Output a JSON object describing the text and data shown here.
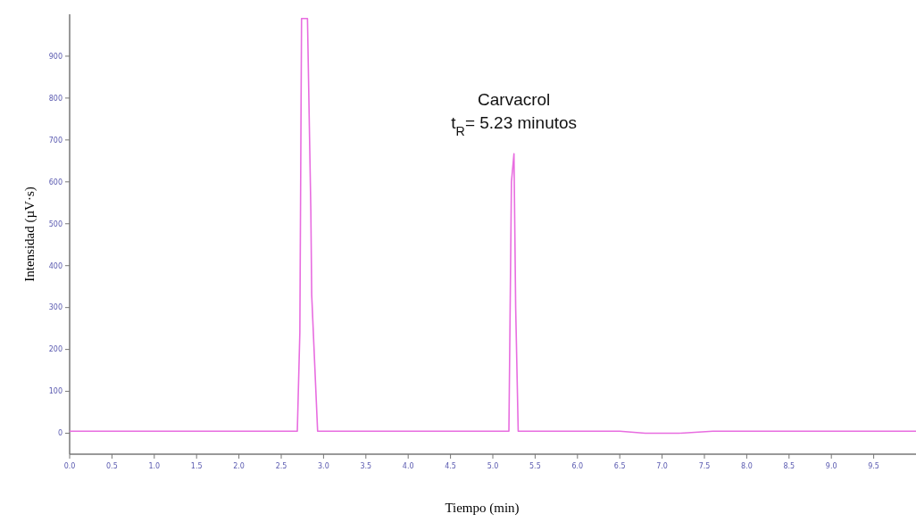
{
  "chart_data": {
    "type": "line",
    "xlabel": "Tiempo (min)",
    "ylabel": "Intensidad  (µV·s)",
    "annotations": [
      {
        "text": "Carvacrol",
        "x": 5.25,
        "y": 667
      },
      {
        "text": "t$_{R}$= 5.23 minutos",
        "x": 5.25,
        "y": 667
      }
    ],
    "series": [
      {
        "color": "#e86de0",
        "x": [
          0,
          2.69,
          2.72,
          2.74,
          2.81,
          2.85,
          2.86,
          2.93,
          5.19,
          5.22,
          5.25,
          5.27,
          5.3,
          6.5,
          6.8,
          7.2,
          7.6,
          10
        ],
        "values": [
          5,
          5,
          240,
          990,
          990,
          530,
          330,
          5,
          5,
          600,
          667,
          300,
          5,
          5,
          0,
          0,
          5,
          5
        ]
      }
    ],
    "xlim": [
      0,
      10
    ],
    "ylim": [
      -50,
      1000
    ],
    "xticks": [
      {
        "value": 0,
        "label": "0.0"
      },
      {
        "value": 0.5,
        "label": "0.5"
      },
      {
        "value": 1,
        "label": "1.0"
      },
      {
        "value": 1.5,
        "label": "1.5"
      },
      {
        "value": 2,
        "label": "2.0"
      },
      {
        "value": 2.5,
        "label": "2.5"
      },
      {
        "value": 3,
        "label": "3.0"
      },
      {
        "value": 3.5,
        "label": "3.5"
      },
      {
        "value": 4,
        "label": "4.0"
      },
      {
        "value": 4.5,
        "label": "4.5"
      },
      {
        "value": 5,
        "label": "5.0"
      },
      {
        "value": 5.5,
        "label": "5.5"
      },
      {
        "value": 6,
        "label": "6.0"
      },
      {
        "value": 6.5,
        "label": "6.5"
      },
      {
        "value": 7,
        "label": "7.0"
      },
      {
        "value": 7.5,
        "label": "7.5"
      },
      {
        "value": 8,
        "label": "8.0"
      },
      {
        "value": 8.5,
        "label": "8.5"
      },
      {
        "value": 9,
        "label": "9.0"
      },
      {
        "value": 9.5,
        "label": "9.5"
      }
    ],
    "yticks": [
      0,
      100,
      200,
      300,
      400,
      500,
      600,
      700,
      800,
      900
    ],
    "grid": false,
    "line_style": "solid"
  }
}
